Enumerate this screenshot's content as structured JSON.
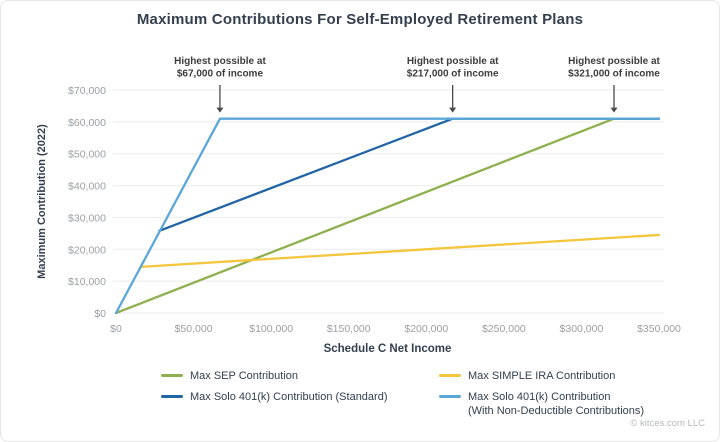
{
  "footer": {
    "credit": "© kitces.com LLC"
  },
  "chart_data": {
    "type": "line",
    "title": "Maximum Contributions For Self-Employed Retirement Plans",
    "xlabel": "Schedule C Net Income",
    "ylabel": "Maximum Contribution (2022)",
    "xlim": [
      0,
      350000
    ],
    "ylim": [
      0,
      70000
    ],
    "grid": "horizontal",
    "legend_position": "bottom",
    "x_ticks": {
      "values": [
        0,
        50000,
        100000,
        150000,
        200000,
        250000,
        300000,
        350000
      ],
      "labels": [
        "$0",
        "$50,000",
        "$100,000",
        "$150,000",
        "$200,000",
        "$250,000",
        "$300,000",
        "$350,000"
      ]
    },
    "y_ticks": {
      "values": [
        0,
        10000,
        20000,
        30000,
        40000,
        50000,
        60000,
        70000
      ],
      "labels": [
        "$0",
        "$10,000",
        "$20,000",
        "$30,000",
        "$40,000",
        "$50,000",
        "$60,000",
        "$70,000"
      ]
    },
    "series": [
      {
        "name": "Max SEP Contribution",
        "color": "#8fb04f",
        "points": [
          [
            0,
            0
          ],
          [
            321000,
            61000
          ],
          [
            350000,
            61000
          ]
        ]
      },
      {
        "name": "Max SIMPLE IRA Contribution",
        "color": "#f3c63e",
        "points": [
          [
            16000,
            14480
          ],
          [
            350000,
            24500
          ]
        ]
      },
      {
        "name": "Max Solo 401(k) Contribution (Standard)",
        "color": "#2265a5",
        "points": [
          [
            28000,
            25800
          ],
          [
            217000,
            61000
          ],
          [
            350000,
            61000
          ]
        ]
      },
      {
        "name": "Max Solo 401(k) Contribution",
        "name2": "(With Non-Deductible Contributions)",
        "color": "#5ba8d8",
        "points": [
          [
            0,
            0
          ],
          [
            67000,
            61000
          ],
          [
            350000,
            61000
          ]
        ]
      }
    ],
    "annotations": [
      {
        "x": 67000,
        "y": 61000,
        "lines": [
          "Highest possible at",
          "$67,000 of income"
        ]
      },
      {
        "x": 217000,
        "y": 61000,
        "lines": [
          "Highest possible at",
          "$217,000 of income"
        ]
      },
      {
        "x": 321000,
        "y": 61000,
        "lines": [
          "Highest possible at",
          "$321,000 of income"
        ]
      }
    ]
  }
}
